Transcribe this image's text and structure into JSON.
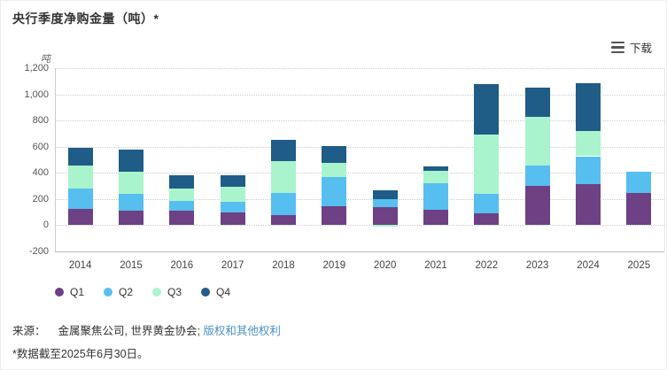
{
  "header": {
    "title": "央行季度净购金量（吨）*"
  },
  "toolbar": {
    "download_label": "下载"
  },
  "chart_data": {
    "type": "bar",
    "stacked": true,
    "title": "央行季度净购金量（吨）*",
    "unit_label": "吨",
    "categories": [
      "2014",
      "2015",
      "2016",
      "2017",
      "2018",
      "2019",
      "2020",
      "2021",
      "2022",
      "2023",
      "2024",
      "2025"
    ],
    "series": [
      {
        "name": "Q1",
        "color": "#6d4183",
        "values": [
          124,
          110,
          110,
          100,
          80,
          146,
          140,
          116,
          93,
          298,
          312,
          244
        ]
      },
      {
        "name": "Q2",
        "color": "#57bef0",
        "values": [
          157,
          130,
          76,
          80,
          166,
          224,
          57,
          204,
          147,
          158,
          215,
          166
        ]
      },
      {
        "name": "Q3",
        "color": "#a9f4cd",
        "values": [
          176,
          168,
          94,
          115,
          245,
          105,
          -10,
          95,
          452,
          370,
          190,
          0
        ]
      },
      {
        "name": "Q4",
        "color": "#1f5c87",
        "values": [
          135,
          168,
          104,
          84,
          160,
          127,
          68,
          35,
          383,
          222,
          368,
          0
        ]
      }
    ],
    "ylim": [
      -200,
      1200
    ],
    "ytick_values": [
      1200,
      1000,
      800,
      600,
      400,
      200,
      0,
      -200
    ],
    "ytick_labels": [
      "1,200",
      "1,000",
      "800",
      "600",
      "400",
      "200",
      "0",
      "-200"
    ],
    "grid": "horizontal dotted",
    "legend_position": "bottom-left",
    "note": "2025 shows Q1 and Q2 only; 2020 Q3 is negative (plotted below zero)"
  },
  "footer": {
    "source_prefix": "来源：",
    "source_text": "金属聚焦公司, 世界黄金协会;",
    "rights_link": "版权和其他权利",
    "footnote": "*数据截至2025年6月30日。"
  }
}
